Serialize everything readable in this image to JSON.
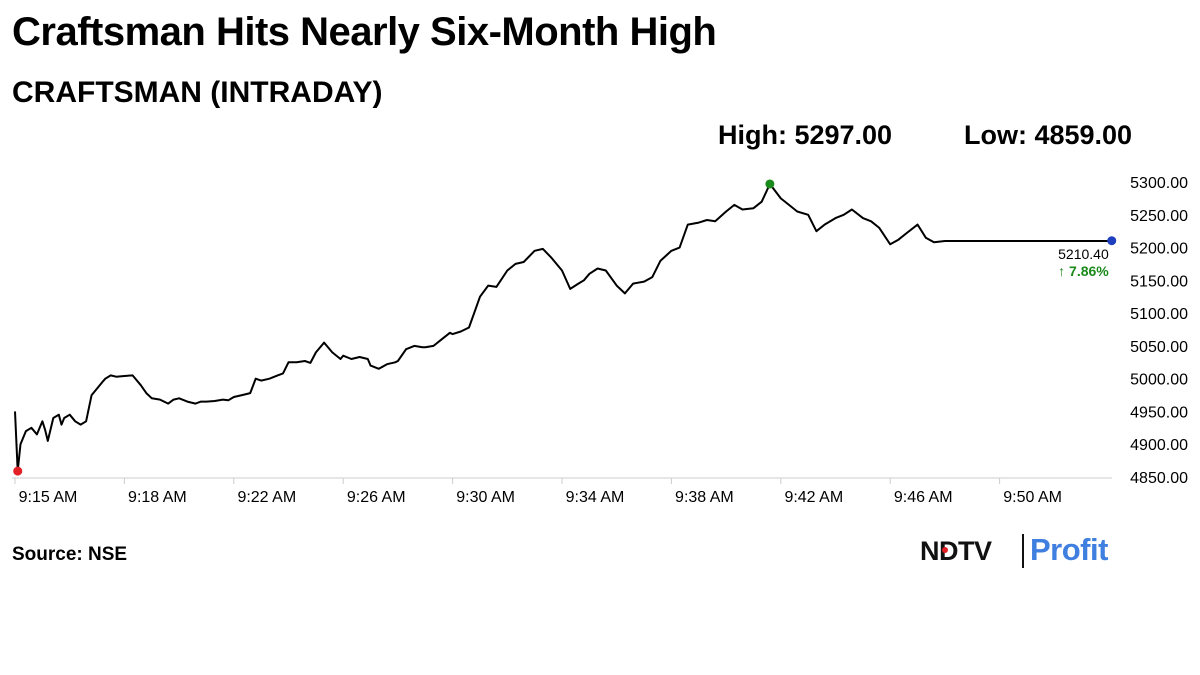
{
  "title": "Craftsman Hits Nearly Six-Month High",
  "subtitle": "CRAFTSMAN (INTRADAY)",
  "high_label": "High: 5297.00",
  "low_label": "Low: 4859.00",
  "source": "Source: NSE",
  "logo": {
    "part1": "NDTV",
    "part2": "Profit"
  },
  "colors": {
    "line": "#000000",
    "high_marker": "#1a8a1a",
    "low_marker": "#e32025",
    "last_marker": "#1f3fbf",
    "change_text": "#1a8a1a",
    "grid": "#cccccc",
    "logo_blue": "#3f7fe0",
    "logo_red": "#e32025"
  },
  "chart_data": {
    "type": "line",
    "title": "CRAFTSMAN (INTRADAY)",
    "xlabel": "",
    "ylabel": "",
    "ylim": [
      4850,
      5300
    ],
    "y_ticks": [
      "5300.00",
      "5250.00",
      "5200.00",
      "5150.00",
      "5100.00",
      "5050.00",
      "5000.00",
      "4950.00",
      "4900.00",
      "4850.00"
    ],
    "x_tick_labels": [
      "9:15 AM",
      "9:18 AM",
      "9:22 AM",
      "9:26 AM",
      "9:30 AM",
      "9:34 AM",
      "9:38 AM",
      "9:42 AM",
      "9:46 AM",
      "9:50 AM"
    ],
    "grid": false,
    "high": 5297.0,
    "low": 4859.0,
    "last": "5210.40",
    "change": "↑ 7.86%",
    "series": [
      {
        "x_minutes": [
          0,
          0.1,
          0.2,
          0.4,
          0.6,
          0.8,
          1.0,
          1.1,
          1.2,
          1.4,
          1.6,
          1.7,
          1.8,
          2.0,
          2.2,
          2.4,
          2.6,
          2.8,
          3.0,
          3.2,
          3.3,
          3.5,
          3.7,
          4.0,
          4.3,
          4.6,
          4.8,
          5.0,
          5.3,
          5.6,
          5.8,
          6.0,
          6.3,
          6.6,
          6.8,
          7.0,
          7.3,
          7.6,
          7.8,
          8.0,
          8.3,
          8.6,
          8.8,
          9.0,
          9.3,
          9.6,
          9.8,
          10.0,
          10.3,
          10.6,
          10.8,
          11.0,
          11.3,
          11.6,
          11.9,
          12.0,
          12.3,
          12.6,
          12.9,
          13.0,
          13.3,
          13.6,
          13.9,
          14.0,
          14.3,
          14.6,
          14.9,
          15.0,
          15.3,
          15.6,
          15.9,
          16.0,
          16.3,
          16.6,
          17.0,
          17.3,
          17.6,
          18.0,
          18.3,
          18.6,
          19.0,
          19.3,
          19.6,
          20.0,
          20.3,
          20.6,
          20.8,
          21.0,
          21.3,
          21.6,
          22.0,
          22.3,
          22.6,
          23.0,
          23.3,
          23.6,
          24.0,
          24.3,
          24.6,
          25.0,
          25.3,
          25.6,
          26.0,
          26.3,
          26.6,
          27.0,
          27.3,
          27.6,
          28.0,
          28.3,
          28.6,
          29.0,
          29.3,
          29.6,
          30.0,
          30.3,
          30.6,
          31.0,
          31.3,
          31.6,
          32.0,
          32.3,
          32.6,
          33.0,
          33.3,
          33.6,
          34.0,
          34.3,
          34.6,
          35.0,
          35.3,
          35.6,
          36.0,
          36.3,
          36.6,
          37.0,
          37.3,
          37.6,
          38.0,
          38.3,
          38.6,
          39.0,
          39.3,
          39.6,
          40.0,
          40.3,
          40.6,
          41.0,
          41.3,
          41.6,
          42.0,
          42.3,
          42.6,
          43.0
        ],
        "values": [
          4950,
          4859,
          4900,
          4920,
          4925,
          4915,
          4935,
          4922,
          4905,
          4940,
          4945,
          4930,
          4940,
          4945,
          4935,
          4930,
          4935,
          4975,
          4985,
          4995,
          5000,
          5005,
          5003,
          5004,
          5005,
          4990,
          4978,
          4970,
          4968,
          4962,
          4968,
          4970,
          4965,
          4962,
          4965,
          4965,
          4966,
          4968,
          4967,
          4972,
          4975,
          4978,
          5000,
          4997,
          5000,
          5005,
          5008,
          5025,
          5025,
          5027,
          5024,
          5040,
          5055,
          5040,
          5030,
          5035,
          5030,
          5033,
          5030,
          5020,
          5015,
          5022,
          5025,
          5027,
          5045,
          5050,
          5048,
          5048,
          5050,
          5060,
          5070,
          5068,
          5072,
          5078,
          5125,
          5142,
          5140,
          5165,
          5175,
          5178,
          5195,
          5198,
          5185,
          5165,
          5137,
          5145,
          5150,
          5160,
          5168,
          5165,
          5142,
          5130,
          5145,
          5148,
          5155,
          5180,
          5195,
          5200,
          5235,
          5238,
          5242,
          5240,
          5255,
          5265,
          5258,
          5260,
          5270,
          5297,
          5275,
          5265,
          5255,
          5250,
          5225,
          5235,
          5245,
          5250,
          5258,
          5245,
          5240,
          5230,
          5205,
          5212,
          5222,
          5235,
          5215,
          5208,
          5210,
          5210,
          5210,
          5210,
          5210,
          5210,
          5210,
          5210,
          5210,
          5210,
          5210,
          5210,
          5210,
          5210,
          5210,
          5210,
          5210,
          5210,
          5210,
          5210,
          5210,
          5210,
          5210,
          5210,
          5210,
          5210,
          5210,
          5210
        ]
      }
    ]
  }
}
